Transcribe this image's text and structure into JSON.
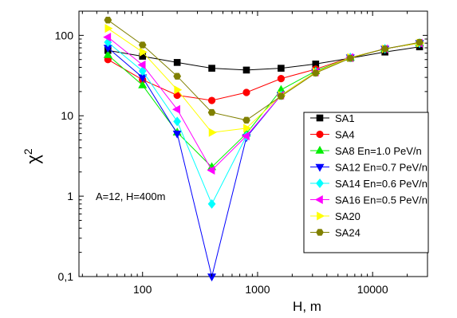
{
  "chart_data": {
    "type": "line",
    "xlabel": "H, m",
    "ylabel": "χ",
    "ylabel_superscript": "2",
    "x_scale": "log",
    "y_scale": "log",
    "xlim": [
      28,
      30000
    ],
    "ylim": [
      0.1,
      200
    ],
    "x_ticks": [
      {
        "value": 100,
        "label": "100"
      },
      {
        "value": 1000,
        "label": "1000"
      },
      {
        "value": 10000,
        "label": "10000"
      }
    ],
    "y_ticks": [
      {
        "value": 0.1,
        "label": "0,1"
      },
      {
        "value": 1,
        "label": "1"
      },
      {
        "value": 10,
        "label": "10"
      },
      {
        "value": 100,
        "label": "100"
      }
    ],
    "grid": false,
    "legend_position": "right",
    "annotation": "A=12, H=400m",
    "x": [
      50,
      100,
      200,
      400,
      800,
      1600,
      3200,
      6400,
      12800,
      25600
    ],
    "series": [
      {
        "name": "SA1",
        "color": "#000000",
        "marker": "square",
        "values": [
          65,
          55,
          46,
          39,
          37,
          39,
          44,
          52,
          62,
          72
        ]
      },
      {
        "name": "SA4",
        "color": "#ff0000",
        "marker": "circle",
        "values": [
          50,
          28,
          18,
          15.5,
          19.5,
          29,
          38,
          53,
          68,
          80
        ]
      },
      {
        "name": "SA8 En=1.0 PeV/n",
        "color": "#00ee00",
        "marker": "triangle-up",
        "values": [
          57,
          24,
          6.2,
          2.3,
          6.0,
          21,
          36,
          53,
          68,
          80
        ]
      },
      {
        "name": "SA12 En=0.7 PeV/n",
        "color": "#0000ff",
        "marker": "triangle-down",
        "values": [
          70,
          30,
          6.0,
          0.1,
          5.4,
          18,
          35,
          53,
          68,
          80
        ]
      },
      {
        "name": "SA14 En=0.6 PeV/n",
        "color": "#00ffff",
        "marker": "diamond",
        "values": [
          82,
          36,
          8.5,
          0.8,
          5.6,
          18,
          35,
          53,
          68,
          80
        ]
      },
      {
        "name": "SA16 En=0.5 PeV/n",
        "color": "#ff00ff",
        "marker": "triangle-left",
        "values": [
          95,
          43,
          12,
          2.1,
          5.6,
          18,
          35,
          53,
          68,
          80
        ]
      },
      {
        "name": "SA20",
        "color": "#ffff00",
        "marker": "triangle-right",
        "values": [
          122,
          62,
          21,
          6.2,
          7.0,
          18,
          35,
          53,
          68,
          80
        ]
      },
      {
        "name": "SA24",
        "color": "#808000",
        "marker": "hexagon",
        "values": [
          155,
          76,
          31,
          11,
          8.8,
          17.5,
          34,
          52,
          68,
          82
        ]
      }
    ]
  }
}
